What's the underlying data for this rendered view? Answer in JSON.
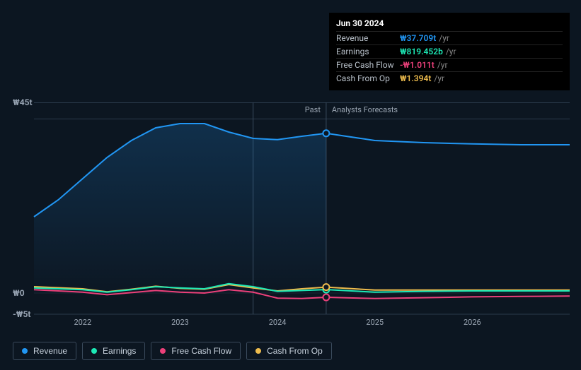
{
  "background_color": "#0c1621",
  "tooltip": {
    "date": "Jun 30 2024",
    "unit": "/yr",
    "rows": [
      {
        "label": "Revenue",
        "value": "₩37.709t",
        "color": "#2196f3"
      },
      {
        "label": "Earnings",
        "value": "₩819.452b",
        "color": "#1de9b6"
      },
      {
        "label": "Free Cash Flow",
        "value": "-₩1.011t",
        "color": "#ec407a"
      },
      {
        "label": "Cash From Op",
        "value": "₩1.394t",
        "color": "#eebc4d"
      }
    ]
  },
  "chart": {
    "type": "line-area",
    "y_max": 45,
    "y_min": -5,
    "y_zero": 0,
    "y_labels": [
      {
        "v": 45,
        "text": "₩45t"
      },
      {
        "v": 0,
        "text": "₩0"
      },
      {
        "v": -5,
        "text": "-₩5t"
      }
    ],
    "x_domain_min": 2021.5,
    "x_domain_max": 2027.0,
    "x_ticks": [
      {
        "v": 2022,
        "text": "2022"
      },
      {
        "v": 2023,
        "text": "2023"
      },
      {
        "v": 2024,
        "text": "2024"
      },
      {
        "v": 2025,
        "text": "2025"
      },
      {
        "v": 2026,
        "text": "2026"
      }
    ],
    "divider_x": 2024.5,
    "past_end_x": 2023.75,
    "era_labels": {
      "past": "Past",
      "future": "Analysts Forecasts"
    },
    "era_band_color": "#2a3a4c",
    "era_height": 24,
    "cursor_x": 2024.5,
    "grid_color": "#1a2632",
    "divider_color": "#3a4a5c",
    "label_fontsize": 12,
    "colors": {
      "revenue": "#2196f3",
      "earnings": "#1de9b6",
      "fcf": "#ec407a",
      "cfo": "#eebc4d"
    },
    "area_gradient": {
      "top": "rgba(33,150,243,0.40)",
      "bottom": "rgba(33,150,243,0.02)"
    },
    "series": {
      "revenue": [
        [
          2021.5,
          18
        ],
        [
          2021.75,
          22
        ],
        [
          2022,
          27
        ],
        [
          2022.25,
          32
        ],
        [
          2022.5,
          36
        ],
        [
          2022.75,
          39
        ],
        [
          2023,
          40
        ],
        [
          2023.25,
          40
        ],
        [
          2023.5,
          38
        ],
        [
          2023.75,
          36.5
        ],
        [
          2024,
          36.2
        ],
        [
          2024.25,
          37
        ],
        [
          2024.5,
          37.7
        ],
        [
          2025,
          36
        ],
        [
          2025.5,
          35.5
        ],
        [
          2026,
          35.2
        ],
        [
          2026.5,
          35
        ],
        [
          2027,
          35
        ]
      ],
      "earnings": [
        [
          2021.5,
          1.2
        ],
        [
          2022,
          0.8
        ],
        [
          2022.25,
          0.2
        ],
        [
          2022.5,
          0.8
        ],
        [
          2022.75,
          1.5
        ],
        [
          2023,
          1.2
        ],
        [
          2023.25,
          1.0
        ],
        [
          2023.5,
          2.2
        ],
        [
          2023.75,
          1.5
        ],
        [
          2024,
          0.4
        ],
        [
          2024.25,
          0.6
        ],
        [
          2024.5,
          0.82
        ],
        [
          2025,
          0.2
        ],
        [
          2025.5,
          0.4
        ],
        [
          2026,
          0.5
        ],
        [
          2026.5,
          0.5
        ],
        [
          2027,
          0.5
        ]
      ],
      "fcf": [
        [
          2021.5,
          0.8
        ],
        [
          2022,
          0.2
        ],
        [
          2022.25,
          -0.4
        ],
        [
          2022.5,
          0.1
        ],
        [
          2022.75,
          0.6
        ],
        [
          2023,
          0.2
        ],
        [
          2023.25,
          0.0
        ],
        [
          2023.5,
          0.8
        ],
        [
          2023.75,
          0.2
        ],
        [
          2024,
          -1.2
        ],
        [
          2024.25,
          -1.3
        ],
        [
          2024.5,
          -1.01
        ],
        [
          2025,
          -1.3
        ],
        [
          2025.5,
          -1.1
        ],
        [
          2026,
          -0.9
        ],
        [
          2026.5,
          -0.8
        ],
        [
          2027,
          -0.7
        ]
      ],
      "cfo": [
        [
          2021.5,
          1.5
        ],
        [
          2022,
          1.0
        ],
        [
          2022.25,
          0.3
        ],
        [
          2022.5,
          0.9
        ],
        [
          2022.75,
          1.6
        ],
        [
          2023,
          1.1
        ],
        [
          2023.25,
          0.9
        ],
        [
          2023.5,
          2.0
        ],
        [
          2023.75,
          1.2
        ],
        [
          2024,
          0.5
        ],
        [
          2024.25,
          1.0
        ],
        [
          2024.5,
          1.39
        ],
        [
          2025,
          0.7
        ],
        [
          2025.5,
          0.7
        ],
        [
          2026,
          0.7
        ],
        [
          2026.5,
          0.7
        ],
        [
          2027,
          0.7
        ]
      ]
    },
    "markers_at": 2024.5,
    "marker_values": {
      "revenue": 37.7,
      "earnings": 0.82,
      "fcf": -1.01,
      "cfo": 1.39
    }
  },
  "legend": [
    {
      "key": "revenue",
      "label": "Revenue",
      "color": "#2196f3"
    },
    {
      "key": "earnings",
      "label": "Earnings",
      "color": "#1de9b6"
    },
    {
      "key": "fcf",
      "label": "Free Cash Flow",
      "color": "#ec407a"
    },
    {
      "key": "cfo",
      "label": "Cash From Op",
      "color": "#eebc4d"
    }
  ]
}
